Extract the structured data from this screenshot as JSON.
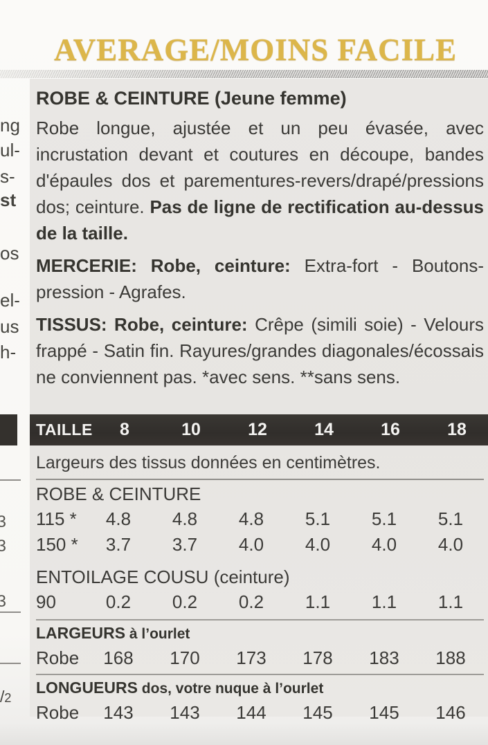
{
  "banner": {
    "text": "AVERAGE/MOINS FACILE",
    "gold_color": "#dcb64a"
  },
  "article": {
    "title": "ROBE & CEINTURE (Jeune femme)",
    "paragraphs": [
      {
        "runs": [
          {
            "text": "Robe longue, ajustée et un peu évasée, avec incrustation devant et coutures en découpe, bandes d'épaules dos et parementures-revers/drapé/pressions dos; ceinture. ",
            "bold": false
          },
          {
            "text": "Pas de ligne de rectification au-dessus de la taille.",
            "bold": true
          }
        ]
      },
      {
        "runs": [
          {
            "text": "MERCERIE: Robe, ceinture: ",
            "bold": true
          },
          {
            "text": "Extra-fort - Boutons-pression - Agrafes.",
            "bold": false
          }
        ]
      },
      {
        "runs": [
          {
            "text": "TISSUS: Robe, ceinture: ",
            "bold": true
          },
          {
            "text": "Crêpe (simili soie) - Velours frappé - Satin fin. Rayures/grandes diagonales/écossais ne conviennent pas. *avec sens. **sans sens.",
            "bold": false
          }
        ]
      }
    ]
  },
  "size_table": {
    "header_label": "TAILLE",
    "sizes": [
      "8",
      "10",
      "12",
      "14",
      "16",
      "18"
    ],
    "note": "Largeurs des tissus données en centimètres.",
    "sections": [
      {
        "title": "ROBE & CEINTURE",
        "suffix": "",
        "rows": [
          {
            "label": "115 *",
            "values": [
              "4.8",
              "4.8",
              "4.8",
              "5.1",
              "5.1",
              "5.1"
            ]
          },
          {
            "label": "150 *",
            "values": [
              "3.7",
              "3.7",
              "4.0",
              "4.0",
              "4.0",
              "4.0"
            ]
          }
        ]
      },
      {
        "title": "ENTOILAGE COUSU",
        "suffix": " (ceinture)",
        "rows": [
          {
            "label": "90",
            "values": [
              "0.2",
              "0.2",
              "0.2",
              "1.1",
              "1.1",
              "1.1"
            ]
          }
        ]
      },
      {
        "title": "LARGEURS",
        "suffix": " à l’ourlet",
        "rows": [
          {
            "label": "Robe",
            "values": [
              "168",
              "170",
              "173",
              "178",
              "183",
              "188"
            ]
          }
        ]
      },
      {
        "title": "LONGUEURS",
        "suffix": " dos, votre nuque à l’ourlet",
        "rows": [
          {
            "label": "Robe",
            "values": [
              "143",
              "143",
              "144",
              "145",
              "145",
              "146"
            ]
          }
        ]
      }
    ]
  },
  "margin_fragments": {
    "texts": [
      "ng",
      "ul-",
      "s-",
      "st",
      "os",
      "el-",
      "us",
      "h-"
    ],
    "digits": [
      "3",
      "3",
      "3"
    ],
    "half_slash": "/",
    "half_two": "2"
  }
}
